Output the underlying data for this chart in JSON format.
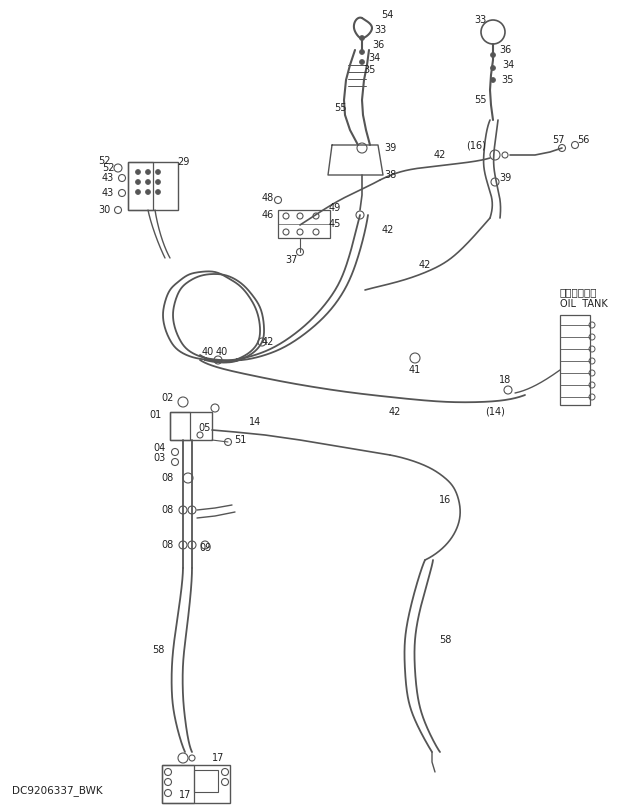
{
  "bg_color": "#ffffff",
  "line_color": "#555555",
  "text_color": "#222222",
  "watermark": "DC9206337_BWK",
  "oil_tank_jp": "オイルタンク",
  "oil_tank_en": "OIL  TANK",
  "figsize": [
    6.2,
    8.08
  ],
  "dpi": 100
}
